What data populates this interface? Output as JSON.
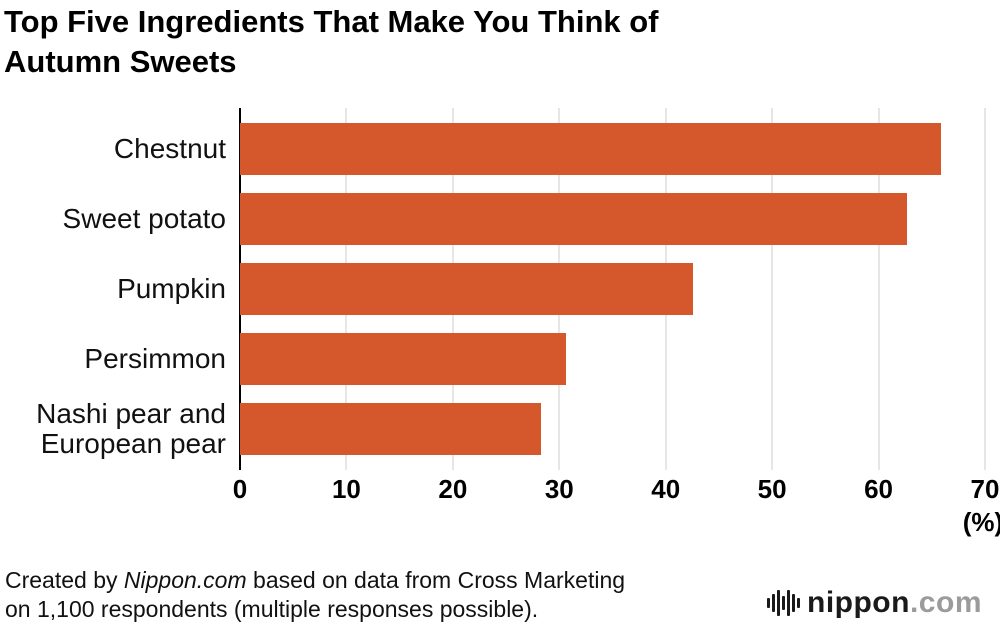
{
  "title": {
    "line1": "Top Five Ingredients That Make You Think of",
    "line2": "Autumn Sweets"
  },
  "chart_data": {
    "type": "bar",
    "orientation": "horizontal",
    "title": "Top Five Ingredients That Make You Think of Autumn Sweets",
    "categories": [
      "Chestnut",
      "Sweet potato",
      "Pumpkin",
      "Persimmon",
      "Nashi pear and European pear"
    ],
    "values": [
      65.9,
      62.7,
      42.6,
      30.6,
      28.3
    ],
    "xlim": [
      0,
      70
    ],
    "xticks": [
      0,
      10,
      20,
      30,
      40,
      50,
      60,
      70
    ],
    "unit_label": "(%)",
    "bar_color": "#d4582b",
    "gridline_color": "#cccccc",
    "grid": true,
    "legend": "none"
  },
  "footer": {
    "credit_prefix": "Created by ",
    "credit_source": "Nippon.com",
    "credit_line1_suffix": " based on data from Cross Marketing",
    "credit_line2": "on 1,100 respondents (multiple responses possible).",
    "logo_name": "nippon",
    "logo_suffix": ".com"
  }
}
